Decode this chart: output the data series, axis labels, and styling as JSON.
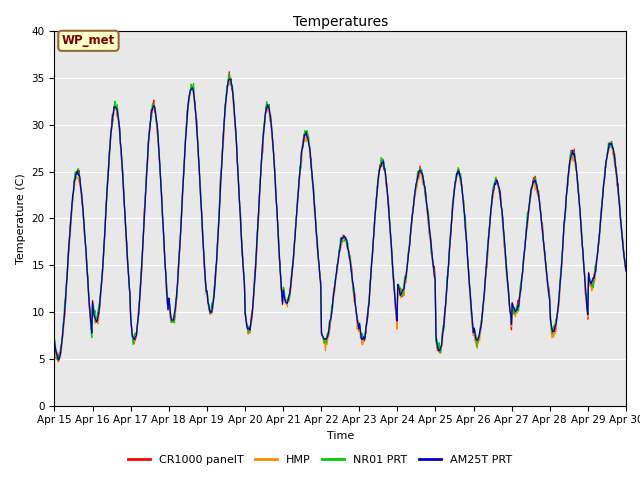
{
  "title": "Temperatures",
  "xlabel": "Time",
  "ylabel": "Temperature (C)",
  "ylim": [
    0,
    40
  ],
  "yticks": [
    0,
    5,
    10,
    15,
    20,
    25,
    30,
    35,
    40
  ],
  "bg_color": "#e8e8e8",
  "annotation_text": "WP_met",
  "annotation_bg": "#ffffcc",
  "annotation_border": "#996633",
  "annotation_text_color": "#800000",
  "series_colors": [
    "#ff0000",
    "#ff8800",
    "#00cc00",
    "#0000cc"
  ],
  "series_labels": [
    "CR1000 panelT",
    "HMP",
    "NR01 PRT",
    "AM25T PRT"
  ],
  "n_days": 15,
  "points_per_day": 48,
  "x_tick_labels": [
    "Apr 15",
    "Apr 16",
    "Apr 17",
    "Apr 18",
    "Apr 19",
    "Apr 20",
    "Apr 21",
    "Apr 22",
    "Apr 23",
    "Apr 24",
    "Apr 25",
    "Apr 26",
    "Apr 27",
    "Apr 28",
    "Apr 29",
    "Apr 30"
  ],
  "grid_color": "#ffffff",
  "grid_linewidth": 0.8,
  "day_maxes": [
    25,
    32,
    32,
    34,
    35,
    32,
    29,
    18,
    26,
    25,
    25,
    24,
    24,
    27,
    28
  ],
  "day_mins": [
    5,
    9,
    7,
    9,
    10,
    8,
    11,
    7,
    7,
    12,
    6,
    7,
    10,
    8,
    13
  ]
}
